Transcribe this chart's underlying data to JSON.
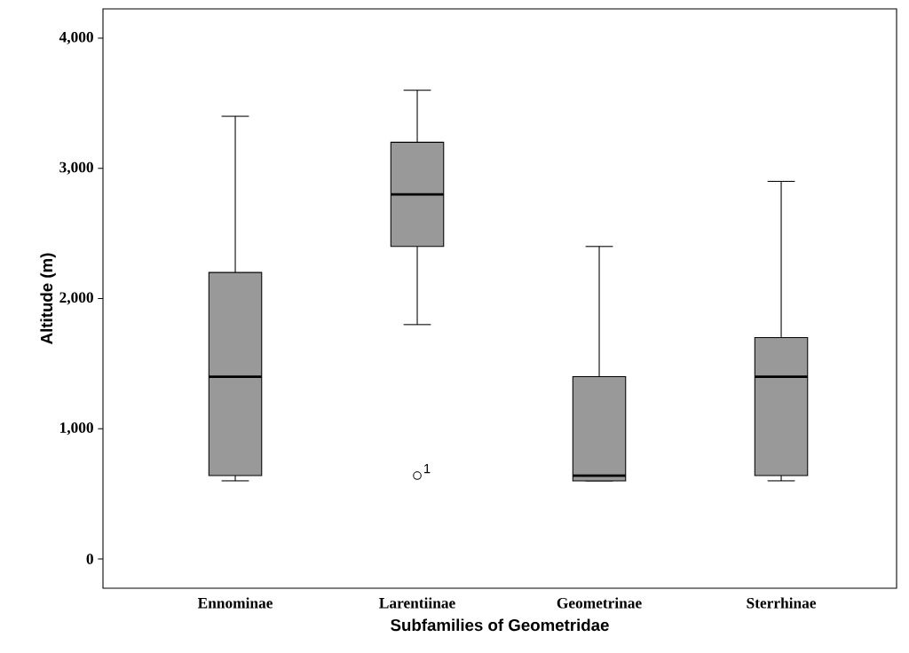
{
  "chart_data": {
    "type": "box",
    "xlabel": "Subfamilies of Geometridae",
    "ylabel": "Altitude (m)",
    "categories": [
      "Ennominae",
      "Larentiinae",
      "Geometrinae",
      "Sterrhinae"
    ],
    "color": "#999999",
    "boxes": [
      {
        "low": 600,
        "q1": 640,
        "median": 1400,
        "q3": 2200,
        "high": 3400
      },
      {
        "low": 1800,
        "q1": 2400,
        "median": 2800,
        "q3": 3200,
        "high": 3600,
        "outliers": [
          640
        ]
      },
      {
        "low": 600,
        "q1": 600,
        "median": 640,
        "q3": 1400,
        "high": 2400
      },
      {
        "low": 600,
        "q1": 640,
        "median": 1400,
        "q3": 1700,
        "high": 2900
      }
    ],
    "ylim": [
      -225,
      4225
    ],
    "yticks": [
      {
        "value": 0,
        "label": "0"
      },
      {
        "value": 1000,
        "label": "1,000"
      },
      {
        "value": 2000,
        "label": "2,000"
      },
      {
        "value": 3000,
        "label": "3,000"
      },
      {
        "value": 4000,
        "label": "4,000"
      }
    ],
    "annotations": [
      "1"
    ]
  }
}
